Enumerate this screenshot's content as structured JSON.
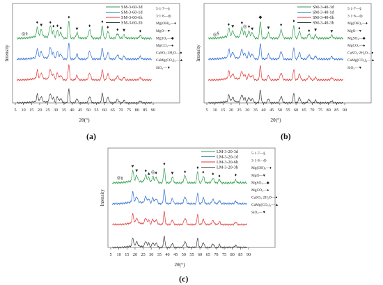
{
  "colors": {
    "green": "#2e9e4a",
    "blue": "#2f6fd0",
    "red": "#e23a3a",
    "black": "#3c3c3c",
    "frame": "#777777"
  },
  "chart_data": [
    {
      "type": "line",
      "panel_label": "(a)",
      "xlabel": "2θ(°)",
      "ylabel": "Intensity",
      "xlim": [
        5,
        90
      ],
      "xticks": [
        5,
        10,
        15,
        20,
        25,
        30,
        35,
        40,
        45,
        50,
        55,
        60,
        65,
        70,
        75,
        80,
        85,
        90
      ],
      "series": [
        {
          "name": "SM-3-60-3d",
          "color": "#2e9e4a"
        },
        {
          "name": "SM-3-60-1d",
          "color": "#2f6fd0"
        },
        {
          "name": "SM-3-60-6h",
          "color": "#e23a3a"
        },
        {
          "name": "SM-3-60-3h",
          "color": "#3c3c3c"
        }
      ],
      "phase_legend": [
        {
          "label": "5·1·7—",
          "symbol": "§"
        },
        {
          "label": "3·1·8—",
          "symbol": "◎"
        },
        {
          "label": "Mg(OH)₂—",
          "symbol": "♦"
        },
        {
          "label": "MgO—",
          "symbol": "♥"
        },
        {
          "label": "MgSO₄—",
          "symbol": "◆"
        },
        {
          "label": "MgCO₃—",
          "symbol": "♠"
        },
        {
          "label": "CaSO₄·2H₂O—",
          "symbol": "●"
        },
        {
          "label": "CaMg(CO₃)₂—",
          "symbol": "▲"
        },
        {
          "label": "SiO₂—",
          "symbol": "▼"
        }
      ],
      "peaks": [
        {
          "x": 18.6,
          "h": 0.55
        },
        {
          "x": 21,
          "h": 0.35
        },
        {
          "x": 26.6,
          "h": 0.65
        },
        {
          "x": 28.5,
          "h": 0.4
        },
        {
          "x": 30.9,
          "h": 0.45
        },
        {
          "x": 33,
          "h": 0.3
        },
        {
          "x": 38,
          "h": 1
        },
        {
          "x": 43,
          "h": 0.3
        },
        {
          "x": 50.8,
          "h": 0.45
        },
        {
          "x": 58.6,
          "h": 0.7
        },
        {
          "x": 62.1,
          "h": 0.4
        },
        {
          "x": 68,
          "h": 0.25
        },
        {
          "x": 72,
          "h": 0.2
        },
        {
          "x": 82,
          "h": 0.15
        }
      ],
      "markers": [
        {
          "x": 10,
          "symbol": "◎"
        },
        {
          "x": 12,
          "symbol": "§"
        },
        {
          "x": 18.5,
          "symbol": "♦"
        },
        {
          "x": 21,
          "symbol": "▼"
        },
        {
          "x": 26.6,
          "symbol": "♦"
        },
        {
          "x": 28.5,
          "symbol": "♦"
        },
        {
          "x": 31,
          "symbol": "♦"
        },
        {
          "x": 33,
          "symbol": "♠"
        },
        {
          "x": 38,
          "symbol": "♦"
        },
        {
          "x": 43,
          "symbol": "▼"
        },
        {
          "x": 50.8,
          "symbol": "♦"
        },
        {
          "x": 58.6,
          "symbol": "♦"
        },
        {
          "x": 62,
          "symbol": "♦"
        },
        {
          "x": 68,
          "symbol": "♦"
        },
        {
          "x": 72,
          "symbol": "▼"
        },
        {
          "x": 82,
          "symbol": "♦"
        }
      ]
    },
    {
      "type": "line",
      "panel_label": "(b)",
      "xlabel": "2θ(°)",
      "ylabel": "Intensity",
      "xlim": [
        5,
        90
      ],
      "xticks": [
        5,
        10,
        15,
        20,
        25,
        30,
        35,
        40,
        45,
        50,
        55,
        60,
        65,
        70,
        75,
        80,
        85,
        90
      ],
      "series": [
        {
          "name": "SM-3-40-3d",
          "color": "#2e9e4a"
        },
        {
          "name": "SM-3-40-1d",
          "color": "#2f6fd0"
        },
        {
          "name": "SM-3-40-6h",
          "color": "#e23a3a"
        },
        {
          "name": "SM-3-40-3h",
          "color": "#3c3c3c"
        }
      ],
      "phase_legend": [
        {
          "label": "5·1·7—",
          "symbol": "§"
        },
        {
          "label": "3·1·8—",
          "symbol": "◎"
        },
        {
          "label": "Mg(OH)₂—",
          "symbol": "♦"
        },
        {
          "label": "MgO—",
          "symbol": "♥"
        },
        {
          "label": "MgSO₄—",
          "symbol": "◆"
        },
        {
          "label": "MgCO₃—",
          "symbol": "♠"
        },
        {
          "label": "CaSO₄·2H₂O—",
          "symbol": "●"
        },
        {
          "label": "CaMg(CO₃)₂—",
          "symbol": "▲"
        },
        {
          "label": "SiO₂—",
          "symbol": "▼"
        }
      ],
      "peaks": [
        {
          "x": 18.6,
          "h": 0.5
        },
        {
          "x": 21,
          "h": 0.3
        },
        {
          "x": 26.6,
          "h": 0.55
        },
        {
          "x": 28.5,
          "h": 0.35
        },
        {
          "x": 30.9,
          "h": 0.4
        },
        {
          "x": 33,
          "h": 0.3
        },
        {
          "x": 38,
          "h": 0.95
        },
        {
          "x": 43,
          "h": 0.3
        },
        {
          "x": 50.8,
          "h": 0.45
        },
        {
          "x": 58.6,
          "h": 0.7
        },
        {
          "x": 62.1,
          "h": 0.4
        },
        {
          "x": 68,
          "h": 0.25
        },
        {
          "x": 72,
          "h": 0.2
        },
        {
          "x": 82,
          "h": 0.15
        }
      ],
      "markers": [
        {
          "x": 10,
          "symbol": "◎"
        },
        {
          "x": 12,
          "symbol": "§"
        },
        {
          "x": 18.5,
          "symbol": "♦"
        },
        {
          "x": 21,
          "symbol": "▼"
        },
        {
          "x": 26.6,
          "symbol": "♠"
        },
        {
          "x": 28.5,
          "symbol": "◎"
        },
        {
          "x": 31,
          "symbol": "♦"
        },
        {
          "x": 33,
          "symbol": "▼"
        },
        {
          "x": 38,
          "symbol": "◆"
        },
        {
          "x": 43,
          "symbol": "▼"
        },
        {
          "x": 50.8,
          "symbol": "♦"
        },
        {
          "x": 58.6,
          "symbol": "♦"
        },
        {
          "x": 62,
          "symbol": "♦"
        },
        {
          "x": 68,
          "symbol": "♦"
        },
        {
          "x": 72,
          "symbol": "▼"
        },
        {
          "x": 82,
          "symbol": "▼"
        }
      ]
    },
    {
      "type": "line",
      "panel_label": "(c)",
      "xlabel": "2θ(°)",
      "ylabel": "Intensity",
      "xlim": [
        5,
        90
      ],
      "xticks": [
        5,
        10,
        15,
        20,
        25,
        30,
        35,
        40,
        45,
        50,
        55,
        60,
        65,
        70,
        75,
        80,
        85,
        90
      ],
      "series": [
        {
          "name": "LM-3-20-3d",
          "color": "#2e9e4a"
        },
        {
          "name": "LM-3-20-1d",
          "color": "#2f6fd0"
        },
        {
          "name": "LM-3-20-6h",
          "color": "#e23a3a"
        },
        {
          "name": "LM-3-20-3h",
          "color": "#3c3c3c"
        }
      ],
      "phase_legend": [
        {
          "label": "5·1·7—",
          "symbol": "§"
        },
        {
          "label": "3·1·8—",
          "symbol": "◎"
        },
        {
          "label": "Mg(OH)₂—",
          "symbol": "♦"
        },
        {
          "label": "MgO—",
          "symbol": "♥"
        },
        {
          "label": "MgSO₄—",
          "symbol": "◆"
        },
        {
          "label": "MgCO₃—",
          "symbol": "♠"
        },
        {
          "label": "CaSO₄·2H₂O—",
          "symbol": "●"
        },
        {
          "label": "CaMg(CO₃)₂—",
          "symbol": "▲"
        },
        {
          "label": "SiO₂—",
          "symbol": "▼"
        }
      ],
      "peaks": [
        {
          "x": 18.6,
          "h": 0.6
        },
        {
          "x": 21,
          "h": 0.3
        },
        {
          "x": 26.6,
          "h": 0.4
        },
        {
          "x": 28.5,
          "h": 0.3
        },
        {
          "x": 30.9,
          "h": 0.35
        },
        {
          "x": 33,
          "h": 0.3
        },
        {
          "x": 38,
          "h": 0.85
        },
        {
          "x": 43,
          "h": 0.3
        },
        {
          "x": 50.8,
          "h": 0.4
        },
        {
          "x": 58.6,
          "h": 0.65
        },
        {
          "x": 62.1,
          "h": 0.35
        },
        {
          "x": 68,
          "h": 0.25
        },
        {
          "x": 72,
          "h": 0.2
        },
        {
          "x": 82,
          "h": 0.15
        }
      ],
      "markers": [
        {
          "x": 10,
          "symbol": "◎"
        },
        {
          "x": 12,
          "symbol": "§"
        },
        {
          "x": 18.5,
          "symbol": "♥"
        },
        {
          "x": 21,
          "symbol": "▼"
        },
        {
          "x": 26.6,
          "symbol": "♦"
        },
        {
          "x": 28.5,
          "symbol": "▲"
        },
        {
          "x": 31,
          "symbol": "◎"
        },
        {
          "x": 33,
          "symbol": "♦"
        },
        {
          "x": 38,
          "symbol": "♦"
        },
        {
          "x": 43,
          "symbol": "▼"
        },
        {
          "x": 50.8,
          "symbol": "♦"
        },
        {
          "x": 58.6,
          "symbol": "♦"
        },
        {
          "x": 62,
          "symbol": "♦"
        },
        {
          "x": 68,
          "symbol": "♦"
        },
        {
          "x": 72,
          "symbol": "♦"
        },
        {
          "x": 82,
          "symbol": "♦"
        }
      ]
    }
  ]
}
